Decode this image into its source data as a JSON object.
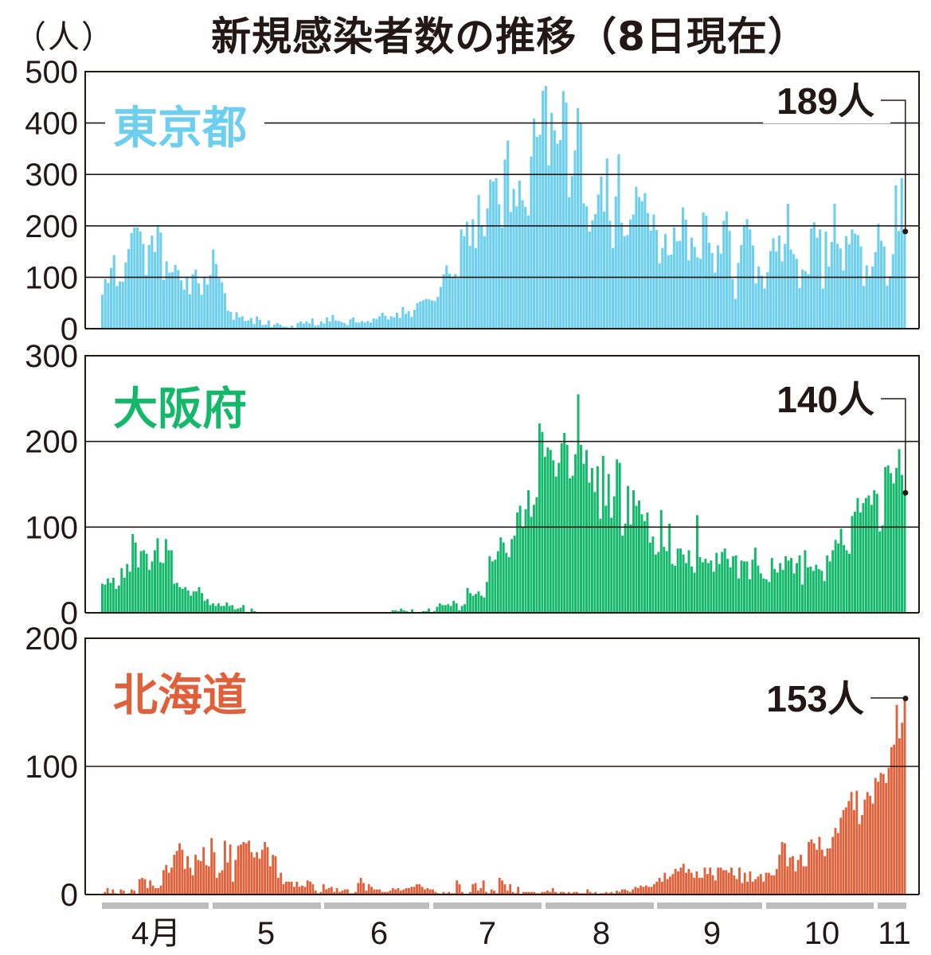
{
  "unit_label": "（人）",
  "title": "新規感染者数の推移（8日現在）",
  "colors": {
    "tokyo": "#6ccfef",
    "osaka": "#13b86b",
    "hokkaido": "#e0603a",
    "axis": "#231815",
    "month_bar": "#bdbdbd"
  },
  "months": [
    "4月",
    "5",
    "6",
    "7",
    "8",
    "9",
    "10",
    "11"
  ],
  "chart_data": [
    {
      "type": "bar",
      "title": "東京都",
      "ylim": [
        0,
        500
      ],
      "yticks": [
        0,
        100,
        200,
        300,
        400,
        500
      ],
      "grid": true,
      "x_start": "4/1",
      "x_end": "11/8",
      "annotation": "189人",
      "series": [
        {
          "name": "東京都",
          "values": [
            66,
            97,
            89,
            118,
            143,
            83,
            92,
            91,
            129,
            155,
            186,
            197,
            197,
            189,
            165,
            104,
            163,
            181,
            149,
            201,
            187,
            95,
            131,
            109,
            110,
            124,
            114,
            94,
            76,
            99,
            67,
            106,
            115,
            88,
            66,
            99,
            86,
            104,
            154,
            126,
            100,
            90,
            69,
            35,
            33,
            17,
            32,
            22,
            24,
            15,
            16,
            21,
            9,
            24,
            17,
            7,
            8,
            16,
            3,
            8,
            11,
            8,
            4,
            4,
            2,
            6,
            1,
            11,
            14,
            10,
            14,
            10,
            20,
            6,
            7,
            14,
            10,
            22,
            14,
            27,
            16,
            15,
            13,
            11,
            7,
            18,
            22,
            12,
            12,
            15,
            12,
            15,
            12,
            20,
            19,
            24,
            31,
            25,
            18,
            24,
            22,
            31,
            21,
            42,
            29,
            34,
            23,
            37,
            50,
            53,
            55,
            58,
            57,
            55,
            54,
            62,
            81,
            106,
            123,
            107,
            101,
            106,
            98,
            193,
            180,
            208,
            161,
            213,
            157,
            260,
            201,
            180,
            234,
            290,
            286,
            293,
            242,
            197,
            329,
            366,
            227,
            272,
            238,
            288,
            250,
            237,
            220,
            335,
            409,
            373,
            377,
            463,
            472,
            318,
            420,
            386,
            360,
            367,
            462,
            440,
            256,
            297,
            347,
            429,
            399,
            244,
            238,
            189,
            211,
            223,
            261,
            296,
            228,
            331,
            210,
            157,
            257,
            339,
            206,
            180,
            182,
            212,
            222,
            276,
            256,
            248,
            264,
            225,
            191,
            222,
            192,
            127,
            157,
            184,
            143,
            144,
            197,
            170,
            171,
            236,
            212,
            133,
            177,
            159,
            139,
            136,
            226,
            220,
            167,
            147,
            109,
            162,
            146,
            210,
            228,
            190,
            97,
            58,
            128,
            163,
            200,
            213,
            193,
            162,
            88,
            121,
            103,
            78,
            110,
            151,
            176,
            150,
            181,
            131,
            165,
            243,
            154,
            145,
            136,
            79,
            115,
            112,
            106,
            195,
            207,
            177,
            193,
            78,
            189,
            121,
            169,
            243,
            165,
            156,
            113,
            180,
            164,
            193,
            185,
            182,
            160,
            83,
            123,
            102,
            121,
            149,
            204,
            171,
            160,
            84,
            102,
            145,
            279,
            190,
            293,
            189
          ]
        }
      ]
    },
    {
      "type": "bar",
      "title": "大阪府",
      "ylim": [
        0,
        300
      ],
      "yticks": [
        0,
        100,
        200,
        300
      ],
      "grid": true,
      "x_start": "4/1",
      "x_end": "11/8",
      "annotation": "140人",
      "series": [
        {
          "name": "大阪府",
          "values": [
            34,
            33,
            40,
            35,
            41,
            28,
            32,
            52,
            41,
            57,
            48,
            92,
            82,
            53,
            72,
            73,
            69,
            50,
            60,
            73,
            87,
            59,
            58,
            86,
            73,
            73,
            34,
            35,
            30,
            28,
            30,
            26,
            20,
            25,
            25,
            30,
            23,
            14,
            16,
            9,
            11,
            8,
            11,
            8,
            8,
            12,
            8,
            9,
            4,
            5,
            6,
            9,
            1,
            1,
            5,
            2,
            1,
            1,
            1,
            1,
            1,
            1,
            1,
            1,
            1,
            1,
            0,
            0,
            0,
            0,
            0,
            0,
            0,
            0,
            0,
            0,
            0,
            0,
            0,
            0,
            0,
            0,
            0,
            0,
            0,
            0,
            0,
            0,
            0,
            0,
            0,
            0,
            0,
            0,
            0,
            0,
            0,
            0,
            0,
            0,
            0,
            0,
            0,
            0,
            1,
            3,
            3,
            2,
            5,
            3,
            2,
            1,
            4,
            1,
            1,
            1,
            2,
            2,
            5,
            1,
            2,
            7,
            11,
            9,
            9,
            10,
            8,
            14,
            11,
            3,
            8,
            10,
            29,
            23,
            20,
            22,
            25,
            20,
            18,
            36,
            66,
            60,
            62,
            72,
            88,
            82,
            70,
            65,
            86,
            90,
            117,
            125,
            100,
            121,
            143,
            112,
            126,
            135,
            221,
            211,
            182,
            193,
            190,
            178,
            159,
            175,
            198,
            210,
            196,
            157,
            160,
            185,
            255,
            196,
            174,
            190,
            152,
            169,
            141,
            171,
            110,
            183,
            125,
            162,
            111,
            136,
            179,
            175,
            90,
            104,
            148,
            103,
            143,
            125,
            131,
            115,
            107,
            117,
            82,
            89,
            68,
            71,
            120,
            77,
            72,
            104,
            57,
            55,
            75,
            75,
            68,
            58,
            73,
            54,
            47,
            114,
            65,
            59,
            63,
            58,
            61,
            48,
            70,
            57,
            71,
            75,
            63,
            53,
            66,
            67,
            40,
            61,
            60,
            60,
            39,
            62,
            76,
            55,
            46,
            40,
            39,
            36,
            64,
            51,
            47,
            58,
            50,
            66,
            61,
            64,
            46,
            58,
            67,
            33,
            73,
            53,
            54,
            49,
            56,
            51,
            49,
            37,
            67,
            60,
            73,
            85,
            81,
            98,
            79,
            73,
            69,
            113,
            118,
            134,
            117,
            128,
            134,
            137,
            126,
            143,
            139,
            95,
            102,
            170,
            172,
            163,
            151,
            169,
            191,
            161,
            140
          ]
        }
      ]
    },
    {
      "type": "bar",
      "title": "北海道",
      "ylim": [
        0,
        200
      ],
      "yticks": [
        0,
        100,
        200
      ],
      "grid": true,
      "x_start": "4/1",
      "x_end": "11/8",
      "annotation": "153人",
      "series": [
        {
          "name": "北海道",
          "values": [
            0,
            2,
            5,
            1,
            4,
            1,
            0,
            4,
            3,
            0,
            1,
            4,
            3,
            0,
            12,
            13,
            12,
            5,
            11,
            7,
            5,
            5,
            7,
            19,
            23,
            17,
            21,
            31,
            34,
            40,
            35,
            20,
            30,
            21,
            15,
            31,
            27,
            26,
            37,
            23,
            22,
            44,
            33,
            13,
            17,
            19,
            42,
            25,
            39,
            10,
            27,
            38,
            39,
            41,
            40,
            42,
            33,
            29,
            33,
            28,
            35,
            41,
            37,
            22,
            31,
            30,
            13,
            17,
            8,
            10,
            10,
            10,
            6,
            10,
            6,
            7,
            6,
            11,
            10,
            8,
            3,
            1,
            2,
            8,
            4,
            5,
            6,
            2,
            5,
            2,
            3,
            4,
            4,
            1,
            1,
            2,
            9,
            13,
            9,
            3,
            8,
            6,
            4,
            4,
            4,
            2,
            2,
            2,
            3,
            5,
            4,
            5,
            3,
            4,
            5,
            5,
            6,
            6,
            8,
            8,
            6,
            4,
            5,
            4,
            4,
            2,
            1,
            0,
            2,
            1,
            2,
            1,
            1,
            11,
            8,
            2,
            0,
            0,
            2,
            8,
            9,
            3,
            5,
            11,
            2,
            1,
            4,
            3,
            1,
            13,
            11,
            8,
            3,
            8,
            2,
            1,
            6,
            0,
            2,
            2,
            2,
            2,
            2,
            1,
            1,
            2,
            2,
            3,
            2,
            5,
            2,
            1,
            2,
            2,
            1,
            2,
            1,
            2,
            2,
            1,
            1,
            1,
            4,
            2,
            1,
            2,
            0,
            1,
            1,
            2,
            1,
            2,
            1,
            3,
            2,
            4,
            4,
            3,
            2,
            4,
            6,
            5,
            7,
            6,
            7,
            6,
            6,
            8,
            10,
            13,
            10,
            17,
            12,
            14,
            16,
            20,
            18,
            21,
            24,
            17,
            20,
            17,
            13,
            18,
            13,
            13,
            21,
            16,
            21,
            15,
            11,
            21,
            21,
            19,
            19,
            17,
            21,
            15,
            12,
            21,
            9,
            17,
            10,
            18,
            10,
            12,
            14,
            16,
            10,
            17,
            17,
            15,
            15,
            20,
            31,
            41,
            40,
            22,
            29,
            30,
            18,
            27,
            31,
            22,
            22,
            41,
            43,
            40,
            35,
            45,
            35,
            30,
            36,
            36,
            45,
            52,
            48,
            60,
            66,
            68,
            73,
            80,
            66,
            81,
            55,
            62,
            74,
            80,
            77,
            71,
            91,
            88,
            95,
            94,
            87,
            99,
            115,
            117,
            148,
            122,
            134,
            153
          ]
        }
      ]
    }
  ]
}
